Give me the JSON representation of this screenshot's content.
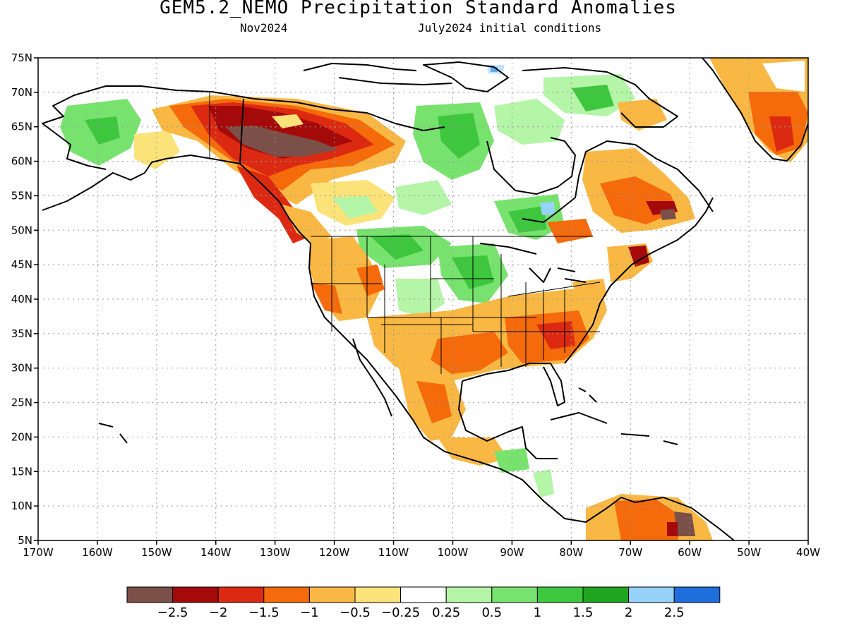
{
  "title": "GEM5.2_NEMO Precipitation Standard Anomalies",
  "subtitle_left": "Nov2024",
  "subtitle_right": "July2024 initial conditions",
  "lat_labels": [
    "75N",
    "70N",
    "65N",
    "60N",
    "55N",
    "50N",
    "45N",
    "40N",
    "35N",
    "30N",
    "25N",
    "20N",
    "15N",
    "10N",
    "5N"
  ],
  "lon_labels": [
    "170W",
    "160W",
    "150W",
    "140W",
    "130W",
    "120W",
    "110W",
    "100W",
    "90W",
    "80W",
    "70W",
    "60W",
    "50W",
    "40W"
  ],
  "colorbar": {
    "colors": [
      "#7b5048",
      "#a50a0a",
      "#dc2a12",
      "#f56a0a",
      "#f9b844",
      "#fbe37a",
      "#ffffff",
      "#b4f5a8",
      "#78e26e",
      "#3ec63e",
      "#1fa51f",
      "#96d2fa",
      "#1e6edc"
    ],
    "labels": [
      "-2.5",
      "-2",
      "-1.5",
      "-1",
      "-0.5",
      "-0.25",
      "0.25",
      "0.5",
      "1",
      "1.5",
      "2",
      "2.5"
    ]
  }
}
